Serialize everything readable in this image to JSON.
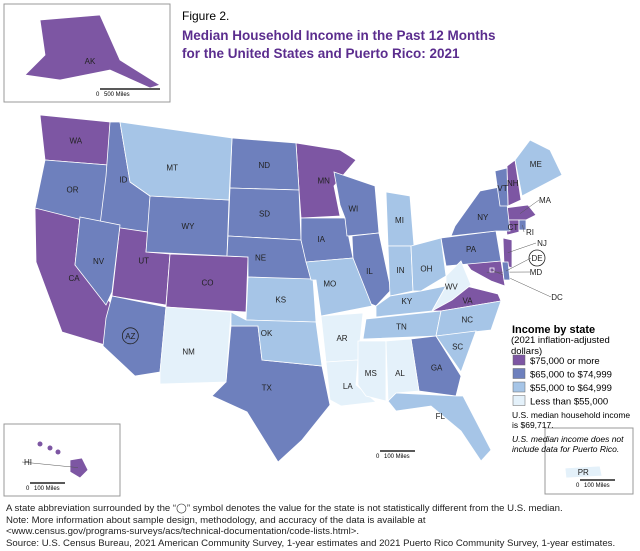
{
  "figure_label": "Figure 2.",
  "title_line1": "Median Household Income in the Past 12 Months",
  "title_line2": "for the United States and Puerto Rico: 2021",
  "legend": {
    "title": "Income by state",
    "subtitle": "(2021 inflation-adjusted dollars)",
    "classes": [
      {
        "label": "$75,000 or more",
        "color": "#7d56a3",
        "states": [
          {
            "abbr": "WA"
          },
          {
            "abbr": "CA"
          },
          {
            "abbr": "UT"
          },
          {
            "abbr": "CO"
          },
          {
            "abbr": "MN"
          },
          {
            "abbr": "MA"
          },
          {
            "abbr": "NH"
          },
          {
            "abbr": "CT"
          },
          {
            "abbr": "NJ"
          },
          {
            "abbr": "MD"
          },
          {
            "abbr": "VA"
          },
          {
            "abbr": "DC"
          },
          {
            "abbr": "AK"
          },
          {
            "abbr": "HI"
          }
        ]
      },
      {
        "label": "$65,000 to $74,999",
        "color": "#6e80bd",
        "states": [
          {
            "abbr": "OR"
          },
          {
            "abbr": "ID"
          },
          {
            "abbr": "NV"
          },
          {
            "abbr": "AZ",
            "circled": true
          },
          {
            "abbr": "WY"
          },
          {
            "abbr": "ND"
          },
          {
            "abbr": "SD"
          },
          {
            "abbr": "NE"
          },
          {
            "abbr": "IA"
          },
          {
            "abbr": "WI"
          },
          {
            "abbr": "IL"
          },
          {
            "abbr": "TX"
          },
          {
            "abbr": "GA"
          },
          {
            "abbr": "PA"
          },
          {
            "abbr": "NY"
          },
          {
            "abbr": "VT"
          },
          {
            "abbr": "RI"
          },
          {
            "abbr": "DE",
            "circled": true
          }
        ]
      },
      {
        "label": "$55,000 to $64,999",
        "color": "#a6c5e7",
        "states": [
          {
            "abbr": "MT"
          },
          {
            "abbr": "KS"
          },
          {
            "abbr": "OK"
          },
          {
            "abbr": "MO"
          },
          {
            "abbr": "MI"
          },
          {
            "abbr": "IN"
          },
          {
            "abbr": "OH"
          },
          {
            "abbr": "KY"
          },
          {
            "abbr": "TN"
          },
          {
            "abbr": "NC"
          },
          {
            "abbr": "SC"
          },
          {
            "abbr": "FL"
          },
          {
            "abbr": "ME"
          }
        ]
      },
      {
        "label": "Less than $55,000",
        "color": "#e4f1fa",
        "states": [
          {
            "abbr": "NM"
          },
          {
            "abbr": "AR"
          },
          {
            "abbr": "LA"
          },
          {
            "abbr": "MS"
          },
          {
            "abbr": "AL"
          },
          {
            "abbr": "WV"
          },
          {
            "abbr": "PR"
          }
        ]
      }
    ]
  },
  "us_median": "U.S. median household income is $69,717.",
  "pr_note": "U.S. median income does not include data for Puerto Rico.",
  "scale_bars": [
    {
      "zero": "0",
      "label": "500 Miles"
    },
    {
      "zero": "0",
      "label": "100 Miles"
    },
    {
      "zero": "0",
      "label": "100 Miles"
    },
    {
      "zero": "0",
      "label": "100 Miles"
    }
  ],
  "notes": [
    "A state abbreviation surrounded by the “◯” symbol denotes the value for the state is not statistically different from the U.S. median.",
    "Note: More information about sample design, methodology, and accuracy of the data is available at",
    "<www.census.gov/programs-surveys/acs/technical-documentation/code-lists.html>.",
    "Source: U.S. Census Bureau, 2021 American Community Survey, 1-year estimates and 2021 Puerto Rico Community Survey, 1-year estimates."
  ]
}
